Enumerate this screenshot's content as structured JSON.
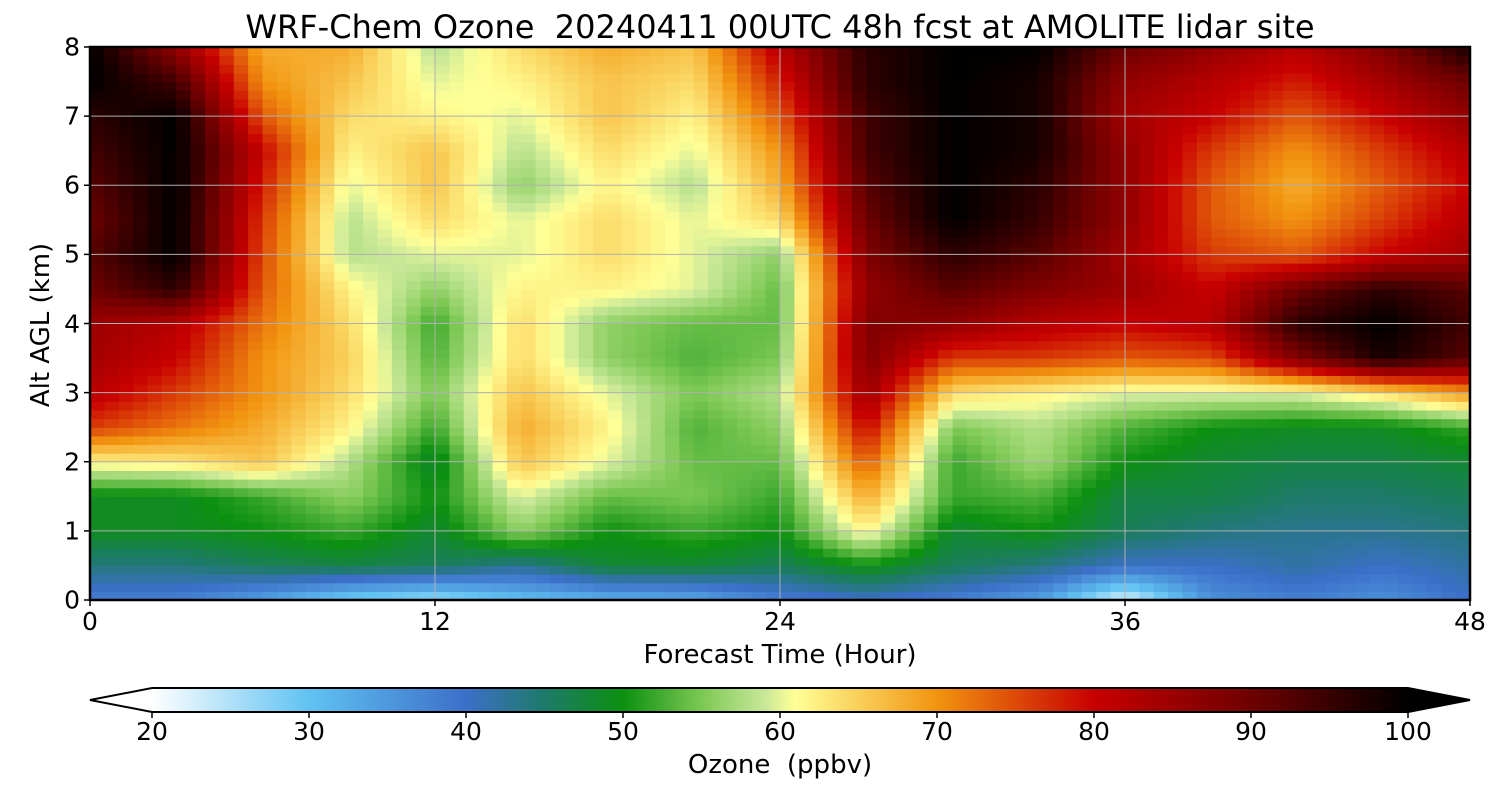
{
  "chart_data": {
    "type": "heatmap",
    "title": "WRF-Chem Ozone  20240411 00UTC 48h fcst at AMOLITE lidar site",
    "xlabel": "Forecast Time (Hour)",
    "ylabel": "Alt AGL (km)",
    "xlim": [
      0,
      48
    ],
    "ylim": [
      0,
      8
    ],
    "xticks": [
      "0",
      "12",
      "24",
      "36",
      "48"
    ],
    "yticks": [
      "0",
      "1",
      "2",
      "3",
      "4",
      "5",
      "6",
      "7",
      "8"
    ],
    "grid": true,
    "colorbar": {
      "label": "Ozone  (ppbv)",
      "range": [
        20,
        100
      ],
      "ticks": [
        "20",
        "30",
        "40",
        "50",
        "60",
        "70",
        "80",
        "90",
        "100"
      ],
      "extend": "both",
      "stops": [
        {
          "value": 20,
          "color": "#ffffff"
        },
        {
          "value": 30,
          "color": "#60c2f2"
        },
        {
          "value": 40,
          "color": "#3c6fc8"
        },
        {
          "value": 45,
          "color": "#1e7a6a"
        },
        {
          "value": 50,
          "color": "#0c9010"
        },
        {
          "value": 55,
          "color": "#7cc854"
        },
        {
          "value": 59,
          "color": "#c8e898"
        },
        {
          "value": 61,
          "color": "#ffff96"
        },
        {
          "value": 70,
          "color": "#f29410"
        },
        {
          "value": 80,
          "color": "#c80000"
        },
        {
          "value": 90,
          "color": "#6e0000"
        },
        {
          "value": 100,
          "color": "#000000"
        }
      ]
    },
    "x": [
      0,
      3,
      6,
      9,
      12,
      15,
      18,
      21,
      24,
      27,
      30,
      33,
      36,
      39,
      42,
      45,
      48
    ],
    "y": [
      0,
      0.5,
      1,
      1.5,
      2,
      2.5,
      3,
      3.5,
      4,
      4.5,
      5,
      5.5,
      6,
      6.5,
      7,
      7.5,
      8
    ],
    "values": [
      [
        38,
        38,
        34,
        28,
        26,
        30,
        32,
        33,
        38,
        40,
        38,
        34,
        22,
        36,
        38,
        36,
        40
      ],
      [
        44,
        44,
        46,
        47,
        46,
        43,
        48,
        48,
        46,
        50,
        46,
        44,
        40,
        40,
        42,
        40,
        42
      ],
      [
        49,
        49,
        50,
        52,
        48,
        56,
        50,
        52,
        50,
        62,
        48,
        50,
        46,
        44,
        43,
        43,
        44
      ],
      [
        49,
        49,
        52,
        56,
        50,
        60,
        54,
        55,
        52,
        68,
        52,
        53,
        47,
        47,
        45,
        45,
        46
      ],
      [
        62,
        63,
        66,
        58,
        48,
        66,
        60,
        54,
        54,
        74,
        52,
        57,
        50,
        48,
        47,
        47,
        48
      ],
      [
        76,
        72,
        68,
        62,
        52,
        68,
        62,
        53,
        56,
        80,
        55,
        58,
        53,
        50,
        49,
        49,
        52
      ],
      [
        82,
        76,
        70,
        64,
        55,
        66,
        60,
        55,
        58,
        85,
        64,
        62,
        60,
        60,
        60,
        64,
        70
      ],
      [
        84,
        80,
        70,
        65,
        53,
        64,
        56,
        53,
        55,
        88,
        76,
        76,
        74,
        75,
        88,
        98,
        92
      ],
      [
        85,
        82,
        72,
        64,
        52,
        64,
        56,
        54,
        54,
        88,
        86,
        82,
        80,
        82,
        96,
        100,
        94
      ],
      [
        90,
        96,
        74,
        62,
        56,
        62,
        62,
        60,
        54,
        86,
        92,
        88,
        85,
        80,
        90,
        96,
        92
      ],
      [
        92,
        100,
        75,
        58,
        60,
        60,
        64,
        60,
        56,
        88,
        96,
        92,
        84,
        76,
        74,
        80,
        84
      ],
      [
        90,
        100,
        76,
        58,
        64,
        60,
        64,
        60,
        64,
        90,
        100,
        95,
        86,
        74,
        70,
        76,
        82
      ],
      [
        92,
        100,
        78,
        60,
        66,
        56,
        62,
        58,
        68,
        92,
        100,
        96,
        86,
        74,
        68,
        74,
        80
      ],
      [
        94,
        100,
        80,
        62,
        66,
        58,
        64,
        60,
        70,
        94,
        100,
        98,
        86,
        76,
        70,
        76,
        82
      ],
      [
        96,
        100,
        74,
        64,
        62,
        60,
        66,
        62,
        74,
        94,
        100,
        98,
        84,
        80,
        74,
        80,
        86
      ],
      [
        100,
        94,
        70,
        66,
        60,
        62,
        66,
        64,
        78,
        96,
        100,
        98,
        86,
        82,
        78,
        84,
        90
      ],
      [
        100,
        86,
        68,
        68,
        58,
        64,
        68,
        66,
        82,
        96,
        100,
        100,
        90,
        86,
        82,
        88,
        98
      ]
    ]
  }
}
